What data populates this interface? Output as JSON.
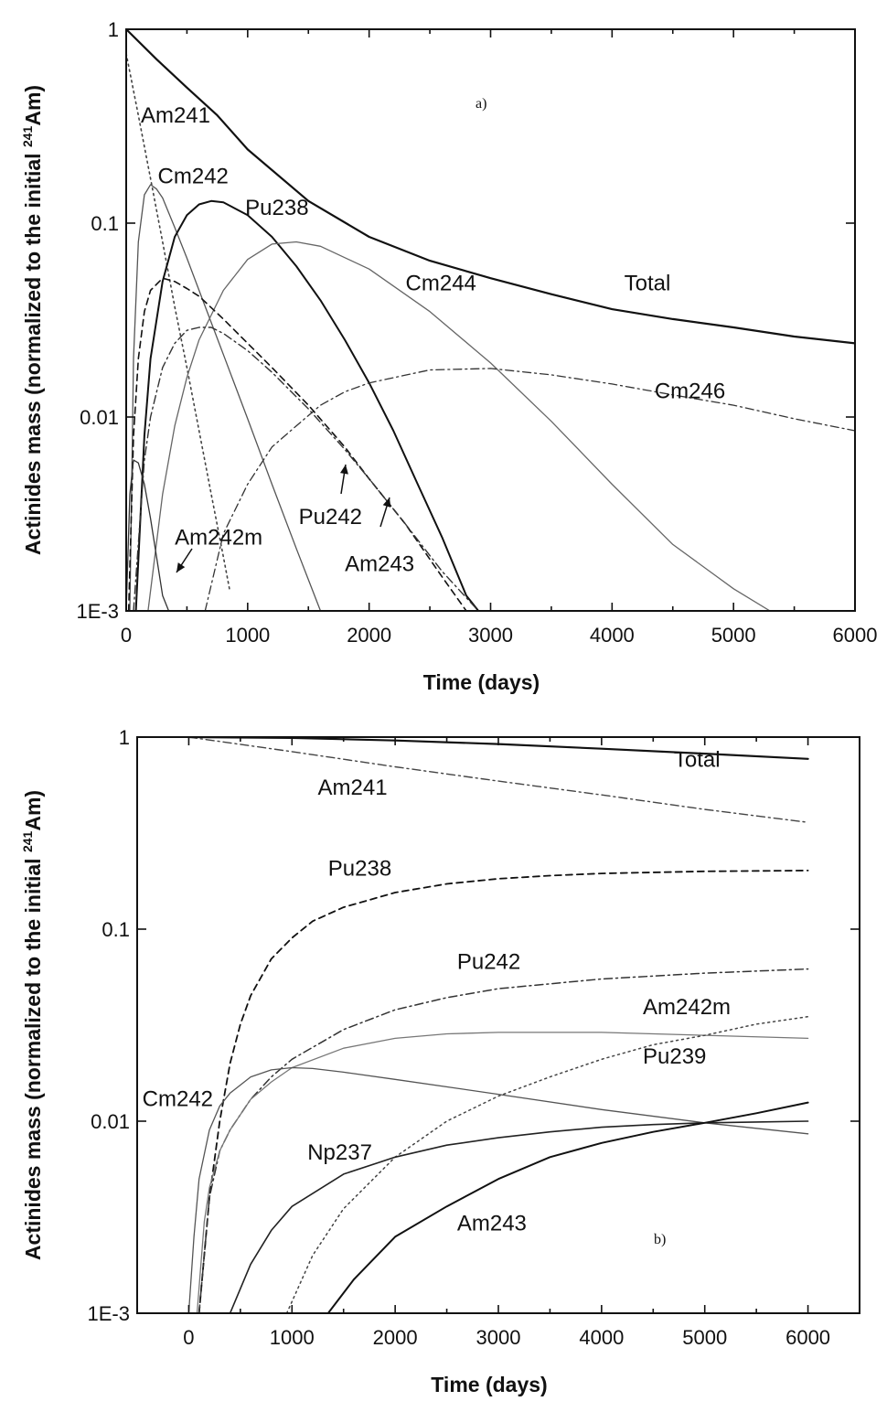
{
  "chart_data": [
    {
      "type": "line",
      "panel_label": "a)",
      "xlabel": "Time (days)",
      "ylabel": "Actinides mass (normalized  to the initial ",
      "ylabel_sup": "241",
      "ylabel_end": "Am)",
      "xlim": [
        0,
        6000
      ],
      "ylim": [
        0.001,
        1
      ],
      "yscale": "log",
      "xticks": [
        0,
        1000,
        2000,
        3000,
        4000,
        5000,
        6000
      ],
      "xtick_labels": [
        "0",
        "1000",
        "2000",
        "3000",
        "4000",
        "5000",
        "6000"
      ],
      "yticks": [
        0.001,
        0.01,
        0.1,
        1
      ],
      "ytick_labels": [
        "1E-3",
        "0.01",
        "0.1",
        "1"
      ],
      "grid": false,
      "series": [
        {
          "name": "Total",
          "style": "solid",
          "color": "#111111",
          "width": 2.2,
          "x": [
            0,
            250,
            500,
            750,
            1000,
            1500,
            2000,
            2500,
            3000,
            3500,
            4000,
            4500,
            5000,
            5500,
            6000
          ],
          "y": [
            1.0,
            0.7,
            0.5,
            0.36,
            0.24,
            0.13,
            0.085,
            0.064,
            0.052,
            0.043,
            0.036,
            0.032,
            0.029,
            0.026,
            0.024
          ]
        },
        {
          "name": "Am241",
          "style": "dotted",
          "color": "#444444",
          "width": 1.6,
          "x": [
            0,
            100,
            200,
            300,
            400,
            500,
            600,
            700,
            800,
            850
          ],
          "y": [
            0.75,
            0.36,
            0.17,
            0.08,
            0.037,
            0.018,
            0.0085,
            0.004,
            0.0019,
            0.0013
          ]
        },
        {
          "name": "Cm242",
          "style": "solid",
          "color": "#555555",
          "width": 1.3,
          "x": [
            30,
            60,
            100,
            150,
            200,
            250,
            300,
            400,
            500,
            600,
            800,
            1000,
            1200,
            1400,
            1600
          ],
          "y": [
            0.001,
            0.02,
            0.08,
            0.14,
            0.158,
            0.15,
            0.135,
            0.095,
            0.066,
            0.045,
            0.021,
            0.0098,
            0.0045,
            0.0021,
            0.001
          ]
        },
        {
          "name": "Pu238",
          "style": "solid",
          "color": "#111111",
          "width": 2.0,
          "x": [
            80,
            150,
            200,
            300,
            400,
            500,
            600,
            700,
            800,
            1000,
            1200,
            1400,
            1600,
            1800,
            2000,
            2200,
            2400,
            2600,
            2800,
            2900
          ],
          "y": [
            0.001,
            0.008,
            0.02,
            0.05,
            0.085,
            0.11,
            0.125,
            0.13,
            0.128,
            0.11,
            0.085,
            0.06,
            0.04,
            0.025,
            0.015,
            0.0085,
            0.0045,
            0.0024,
            0.0012,
            0.001
          ]
        },
        {
          "name": "Cm244",
          "style": "solid",
          "color": "#666666",
          "width": 1.3,
          "x": [
            180,
            300,
            400,
            500,
            600,
            800,
            1000,
            1200,
            1400,
            1600,
            2000,
            2500,
            3000,
            3500,
            4000,
            4500,
            5000,
            5300
          ],
          "y": [
            0.001,
            0.004,
            0.009,
            0.016,
            0.025,
            0.045,
            0.065,
            0.078,
            0.08,
            0.076,
            0.058,
            0.035,
            0.019,
            0.0095,
            0.0045,
            0.0022,
            0.0013,
            0.001
          ]
        },
        {
          "name": "Cm246",
          "style": "dash-dot",
          "color": "#333333",
          "width": 1.3,
          "x": [
            650,
            800,
            1000,
            1200,
            1400,
            1600,
            1800,
            2000,
            2500,
            3000,
            3500,
            4000,
            4500,
            5000,
            5500,
            6000
          ],
          "y": [
            0.001,
            0.0025,
            0.0045,
            0.007,
            0.009,
            0.0115,
            0.0135,
            0.015,
            0.0175,
            0.0178,
            0.0165,
            0.0148,
            0.013,
            0.0115,
            0.0098,
            0.0085
          ]
        },
        {
          "name": "Pu242",
          "style": "dashed",
          "color": "#111111",
          "width": 1.6,
          "x": [
            20,
            60,
            100,
            150,
            200,
            300,
            400,
            500,
            600,
            800,
            1000,
            1200,
            1500,
            1800,
            2000,
            2300,
            2600,
            2800
          ],
          "y": [
            0.001,
            0.008,
            0.02,
            0.035,
            0.045,
            0.052,
            0.05,
            0.046,
            0.042,
            0.032,
            0.024,
            0.018,
            0.0115,
            0.007,
            0.0048,
            0.0028,
            0.0015,
            0.001
          ]
        },
        {
          "name": "Am243",
          "style": "dash-dot",
          "color": "#333333",
          "width": 1.4,
          "x": [
            60,
            150,
            200,
            300,
            400,
            500,
            600,
            700,
            800,
            1000,
            1200,
            1500,
            1800,
            2000,
            2300,
            2600,
            2900
          ],
          "y": [
            0.001,
            0.006,
            0.01,
            0.018,
            0.024,
            0.028,
            0.029,
            0.029,
            0.027,
            0.022,
            0.017,
            0.011,
            0.0068,
            0.0048,
            0.0028,
            0.0016,
            0.001
          ]
        },
        {
          "name": "Am242m",
          "style": "solid",
          "color": "#333333",
          "width": 1.3,
          "x": [
            0,
            30,
            60,
            100,
            150,
            200,
            250,
            300,
            350
          ],
          "y": [
            0.001,
            0.004,
            0.006,
            0.0058,
            0.0045,
            0.003,
            0.0019,
            0.0012,
            0.001
          ]
        }
      ],
      "annotations": [
        {
          "text": "Am241",
          "x": 120,
          "y": 0.33
        },
        {
          "text": "Cm242",
          "x": 260,
          "y": 0.16
        },
        {
          "text": "Pu238",
          "x": 980,
          "y": 0.11
        },
        {
          "text": "Cm244",
          "x": 2300,
          "y": 0.045
        },
        {
          "text": "Total",
          "x": 4100,
          "y": 0.045
        },
        {
          "text": "Cm246",
          "x": 4350,
          "y": 0.0125
        },
        {
          "text": "Am242m",
          "x": 400,
          "y": 0.0022
        },
        {
          "text": "Pu242",
          "x": 1420,
          "y": 0.0028
        },
        {
          "text": "Am243",
          "x": 1800,
          "y": 0.0016
        }
      ]
    },
    {
      "type": "line",
      "panel_label": "b)",
      "xlabel": "Time (days)",
      "ylabel": "Actinides mass (normalized to the initial ",
      "ylabel_sup": "241",
      "ylabel_end": "Am)",
      "xlim": [
        -500,
        6500
      ],
      "ylim": [
        0.001,
        1
      ],
      "yscale": "log",
      "xticks": [
        0,
        1000,
        2000,
        3000,
        4000,
        5000,
        6000
      ],
      "xtick_labels": [
        "0",
        "1000",
        "2000",
        "3000",
        "4000",
        "5000",
        "6000"
      ],
      "yticks": [
        0.001,
        0.01,
        0.1,
        1
      ],
      "ytick_labels": [
        "1E-3",
        "0.01",
        "0.1",
        "1"
      ],
      "grid": false,
      "series": [
        {
          "name": "Total",
          "style": "solid",
          "color": "#111111",
          "width": 2.2,
          "x": [
            0,
            1000,
            2000,
            3000,
            4000,
            5000,
            6000
          ],
          "y": [
            1.0,
            0.99,
            0.96,
            0.92,
            0.87,
            0.82,
            0.77
          ]
        },
        {
          "name": "Am241",
          "style": "dash-dot",
          "color": "#444444",
          "width": 1.4,
          "x": [
            0,
            1000,
            2000,
            3000,
            4000,
            5000,
            6000
          ],
          "y": [
            1.0,
            0.84,
            0.7,
            0.59,
            0.5,
            0.42,
            0.36
          ]
        },
        {
          "name": "Pu238",
          "style": "dashed",
          "color": "#111111",
          "width": 1.8,
          "x": [
            100,
            200,
            300,
            400,
            500,
            600,
            800,
            1000,
            1200,
            1500,
            2000,
            2500,
            3000,
            3500,
            4000,
            5000,
            6000
          ],
          "y": [
            0.001,
            0.004,
            0.01,
            0.02,
            0.032,
            0.045,
            0.07,
            0.09,
            0.11,
            0.13,
            0.155,
            0.172,
            0.183,
            0.19,
            0.195,
            0.2,
            0.202
          ]
        },
        {
          "name": "Pu242",
          "style": "dash-dot",
          "color": "#333333",
          "width": 1.5,
          "x": [
            100,
            200,
            300,
            400,
            600,
            800,
            1000,
            1500,
            2000,
            2500,
            3000,
            4000,
            5000,
            6000
          ],
          "y": [
            0.001,
            0.004,
            0.007,
            0.009,
            0.013,
            0.017,
            0.021,
            0.03,
            0.038,
            0.044,
            0.049,
            0.055,
            0.059,
            0.062
          ]
        },
        {
          "name": "Am242m",
          "style": "solid",
          "color": "#777777",
          "width": 1.3,
          "x": [
            80,
            150,
            200,
            300,
            400,
            600,
            800,
            1000,
            1500,
            2000,
            2500,
            3000,
            4000,
            5000,
            6000
          ],
          "y": [
            0.001,
            0.003,
            0.0045,
            0.007,
            0.009,
            0.013,
            0.016,
            0.019,
            0.024,
            0.027,
            0.0285,
            0.029,
            0.029,
            0.028,
            0.027
          ]
        },
        {
          "name": "Pu239",
          "style": "dotted",
          "color": "#444444",
          "width": 1.5,
          "x": [
            950,
            1200,
            1500,
            2000,
            2500,
            3000,
            3500,
            4000,
            4500,
            5000,
            5500,
            6000
          ],
          "y": [
            0.001,
            0.002,
            0.0035,
            0.0065,
            0.01,
            0.0135,
            0.017,
            0.021,
            0.025,
            0.028,
            0.032,
            0.035
          ]
        },
        {
          "name": "Cm242",
          "style": "solid",
          "color": "#555555",
          "width": 1.3,
          "x": [
            0,
            50,
            100,
            200,
            300,
            400,
            600,
            800,
            1000,
            1200,
            1500,
            2000,
            3000,
            4000,
            5000,
            6000
          ],
          "y": [
            0.001,
            0.0025,
            0.005,
            0.009,
            0.012,
            0.014,
            0.017,
            0.0185,
            0.019,
            0.0188,
            0.018,
            0.0165,
            0.0138,
            0.0115,
            0.0098,
            0.0086
          ]
        },
        {
          "name": "Np237",
          "style": "solid",
          "color": "#222222",
          "width": 1.6,
          "x": [
            400,
            600,
            800,
            1000,
            1500,
            2000,
            2500,
            3000,
            3500,
            4000,
            4500,
            5000,
            5500,
            6000
          ],
          "y": [
            0.001,
            0.0018,
            0.0027,
            0.0036,
            0.0053,
            0.0065,
            0.0075,
            0.0082,
            0.0088,
            0.0093,
            0.0096,
            0.0098,
            0.0099,
            0.01
          ]
        },
        {
          "name": "Am243",
          "style": "solid",
          "color": "#111111",
          "width": 2.0,
          "x": [
            1350,
            1600,
            2000,
            2500,
            3000,
            3500,
            4000,
            4500,
            5000,
            5500,
            6000
          ],
          "y": [
            0.001,
            0.0015,
            0.0025,
            0.0036,
            0.005,
            0.0065,
            0.0077,
            0.0088,
            0.0098,
            0.011,
            0.0125
          ]
        }
      ],
      "annotations": [
        {
          "text": "Total",
          "x": 4700,
          "y": 0.7
        },
        {
          "text": "Am241",
          "x": 1250,
          "y": 0.5
        },
        {
          "text": "Pu238",
          "x": 1350,
          "y": 0.19
        },
        {
          "text": "Pu242",
          "x": 2600,
          "y": 0.062
        },
        {
          "text": "Am242m",
          "x": 4400,
          "y": 0.036
        },
        {
          "text": "Pu239",
          "x": 4400,
          "y": 0.02
        },
        {
          "text": "Cm242",
          "x": -450,
          "y": 0.012
        },
        {
          "text": "Np237",
          "x": 1150,
          "y": 0.0063
        },
        {
          "text": "Am243",
          "x": 2600,
          "y": 0.0027
        }
      ]
    }
  ]
}
